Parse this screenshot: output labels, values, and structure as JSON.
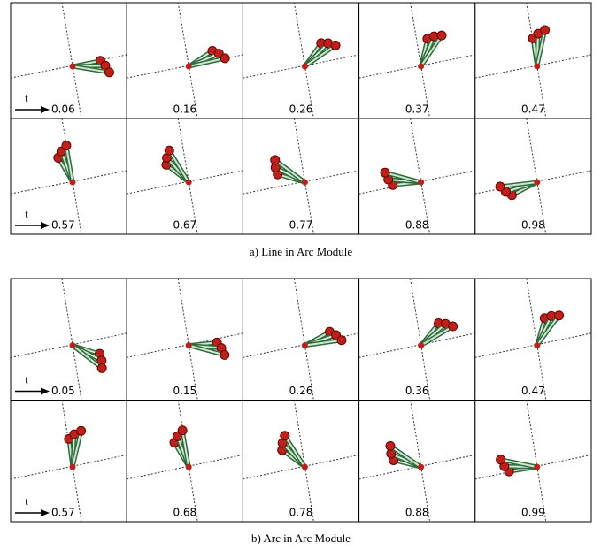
{
  "panels": [
    {
      "caption": "a) Line in Arc Module",
      "arrow_label": "t",
      "frames": [
        "0.06",
        "0.16",
        "0.26",
        "0.37",
        "0.47",
        "0.57",
        "0.67",
        "0.77",
        "0.88",
        "0.98"
      ]
    },
    {
      "caption": "b) Arc in Arc Module",
      "arrow_label": "t",
      "frames": [
        "0.05",
        "0.15",
        "0.26",
        "0.36",
        "0.47",
        "0.57",
        "0.68",
        "0.78",
        "0.88",
        "0.99"
      ]
    }
  ]
}
